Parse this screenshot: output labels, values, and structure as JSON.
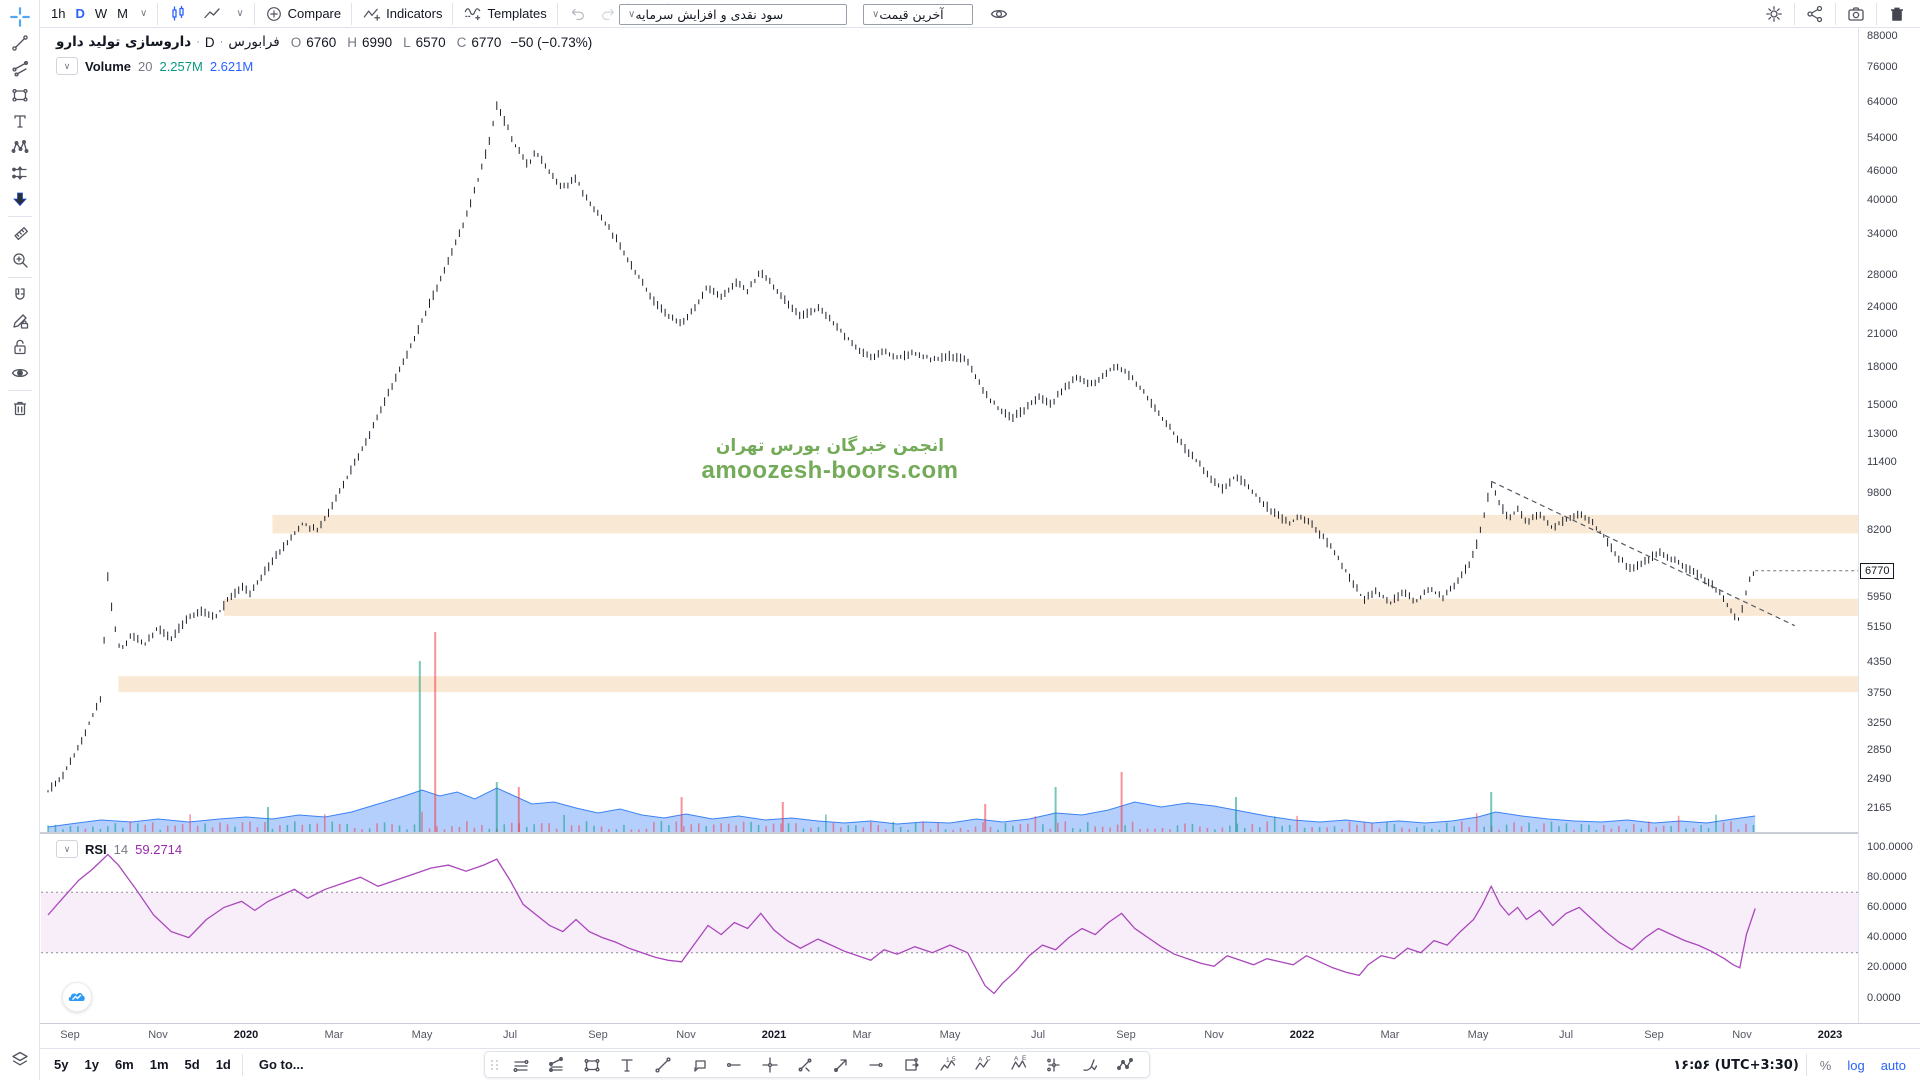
{
  "colors": {
    "accent_blue": "#2962ff",
    "icon_gray": "#50535e",
    "teal": "#089981",
    "purple_value": "#9c27b0",
    "rsi_line": "#ab47bc",
    "zone_fill": "#f9e8d4",
    "volume_blue": "#3b82f6",
    "watermark_green": "#74ab58",
    "candle": "#1c222c",
    "red": "#f23645",
    "border": "#e0e3eb"
  },
  "toolbar_top": {
    "intervals": [
      "1h",
      "D",
      "W",
      "M"
    ],
    "selected_interval": "D",
    "compare_label": "Compare",
    "indicators_label": "Indicators",
    "templates_label": "Templates",
    "dropdown_adjustments": "سود نقدی و افزایش سرمایه",
    "dropdown_last_price": "آخرین قیمت"
  },
  "legend": {
    "symbol": "داروسازی تولید دارو",
    "interval": "D",
    "exchange": "فرابورس",
    "sep": "·",
    "ohlc": {
      "o_label": "O",
      "o": "6760",
      "h_label": "H",
      "h": "6990",
      "l_label": "L",
      "l": "6570",
      "c_label": "C",
      "c": "6770",
      "change": "−50 (−0.73%)"
    },
    "volume_label": "Volume",
    "volume_length": "20",
    "volume_value1": "2.257M",
    "volume_value2": "2.621M"
  },
  "rsi_legend": {
    "label": "RSI",
    "length": "14",
    "value": "59.2714"
  },
  "watermark": {
    "line1": "انجمن خبرگان بورس تهران",
    "line2": "amoozesh-boors.com"
  },
  "toolbar_bottom": {
    "ranges": [
      "5y",
      "1y",
      "6m",
      "1m",
      "5d",
      "1d"
    ],
    "goto_label": "Go to...",
    "clock": "۱۶:۵۶ (UTC+3:30)",
    "percent_label": "%",
    "log_label": "log",
    "auto_label": "auto"
  },
  "chart_data": {
    "type": "candlestick",
    "title": "داروسازی تولید دارو · D · فرابورس",
    "scale": "log",
    "last_price": 6770,
    "price_axis_ticks": [
      88000,
      76000,
      64000,
      54000,
      46000,
      40000,
      34000,
      28000,
      24000,
      21000,
      18000,
      15000,
      13000,
      11400,
      9800,
      8200,
      5950,
      5150,
      4350,
      3750,
      3250,
      2850,
      2490,
      2165
    ],
    "rsi_axis_ticks": [
      [
        "100.0000",
        100
      ],
      [
        "80.0000",
        80
      ],
      [
        "60.0000",
        60
      ],
      [
        "40.0000",
        40
      ],
      [
        "20.0000",
        20
      ],
      [
        "0.0000",
        0
      ]
    ],
    "time_axis_labels": [
      [
        "Sep",
        0
      ],
      [
        "Nov",
        2
      ],
      [
        "2020",
        4
      ],
      [
        "Mar",
        6
      ],
      [
        "May",
        8
      ],
      [
        "Jul",
        10
      ],
      [
        "Sep",
        12
      ],
      [
        "Nov",
        14
      ],
      [
        "2021",
        16
      ],
      [
        "Mar",
        18
      ],
      [
        "May",
        20
      ],
      [
        "Jul",
        22
      ],
      [
        "Sep",
        24
      ],
      [
        "Nov",
        26
      ],
      [
        "2022",
        28
      ],
      [
        "Mar",
        30
      ],
      [
        "May",
        32
      ],
      [
        "Jul",
        34
      ],
      [
        "Sep",
        36
      ],
      [
        "Nov",
        38
      ],
      [
        "2023",
        40
      ]
    ],
    "price_series": [
      [
        -0.5,
        2350
      ],
      [
        -0.2,
        2500
      ],
      [
        0.1,
        2800
      ],
      [
        0.4,
        3200
      ],
      [
        0.7,
        3700
      ],
      [
        0.86,
        6600
      ],
      [
        1.0,
        5200
      ],
      [
        1.15,
        4600
      ],
      [
        1.4,
        5000
      ],
      [
        1.7,
        4750
      ],
      [
        2.0,
        5150
      ],
      [
        2.3,
        4900
      ],
      [
        2.6,
        5300
      ],
      [
        3.0,
        5600
      ],
      [
        3.3,
        5400
      ],
      [
        3.6,
        5900
      ],
      [
        3.9,
        6300
      ],
      [
        4.1,
        6100
      ],
      [
        4.4,
        6700
      ],
      [
        4.7,
        7300
      ],
      [
        5.0,
        7900
      ],
      [
        5.3,
        8500
      ],
      [
        5.6,
        8200
      ],
      [
        5.9,
        9000
      ],
      [
        6.2,
        10200
      ],
      [
        6.5,
        11500
      ],
      [
        6.8,
        13000
      ],
      [
        7.1,
        15000
      ],
      [
        7.4,
        17000
      ],
      [
        7.7,
        19500
      ],
      [
        8.0,
        22500
      ],
      [
        8.3,
        26000
      ],
      [
        8.6,
        30000
      ],
      [
        8.9,
        35000
      ],
      [
        9.2,
        42000
      ],
      [
        9.5,
        52000
      ],
      [
        9.7,
        63000
      ],
      [
        9.9,
        58000
      ],
      [
        10.1,
        52500
      ],
      [
        10.4,
        47500
      ],
      [
        10.6,
        50500
      ],
      [
        10.9,
        46000
      ],
      [
        11.2,
        42500
      ],
      [
        11.5,
        44500
      ],
      [
        11.8,
        39500
      ],
      [
        12.1,
        36500
      ],
      [
        12.4,
        33500
      ],
      [
        12.7,
        30000
      ],
      [
        13.0,
        27000
      ],
      [
        13.3,
        24500
      ],
      [
        13.6,
        23000
      ],
      [
        13.9,
        22200
      ],
      [
        14.2,
        24000
      ],
      [
        14.5,
        26500
      ],
      [
        14.8,
        25000
      ],
      [
        15.1,
        27000
      ],
      [
        15.4,
        26000
      ],
      [
        15.7,
        28500
      ],
      [
        16.0,
        26500
      ],
      [
        16.3,
        24500
      ],
      [
        16.6,
        23000
      ],
      [
        17.0,
        23800
      ],
      [
        17.3,
        22500
      ],
      [
        17.6,
        21000
      ],
      [
        17.9,
        19800
      ],
      [
        18.2,
        18800
      ],
      [
        18.5,
        19400
      ],
      [
        18.8,
        18900
      ],
      [
        19.2,
        19200
      ],
      [
        19.6,
        18700
      ],
      [
        20.0,
        19000
      ],
      [
        20.4,
        18600
      ],
      [
        20.8,
        15800
      ],
      [
        21.1,
        14800
      ],
      [
        21.4,
        14100
      ],
      [
        21.7,
        14700
      ],
      [
        22.0,
        15600
      ],
      [
        22.3,
        15100
      ],
      [
        22.6,
        16300
      ],
      [
        22.9,
        17100
      ],
      [
        23.2,
        16500
      ],
      [
        23.5,
        17400
      ],
      [
        23.8,
        18200
      ],
      [
        24.1,
        17200
      ],
      [
        24.4,
        16000
      ],
      [
        24.7,
        14600
      ],
      [
        25.0,
        13400
      ],
      [
        25.3,
        12300
      ],
      [
        25.6,
        11500
      ],
      [
        25.9,
        10600
      ],
      [
        26.2,
        10000
      ],
      [
        26.5,
        10700
      ],
      [
        26.8,
        10100
      ],
      [
        27.1,
        9400
      ],
      [
        27.4,
        8900
      ],
      [
        27.7,
        8500
      ],
      [
        28.0,
        8800
      ],
      [
        28.3,
        8300
      ],
      [
        28.6,
        7700
      ],
      [
        28.9,
        7000
      ],
      [
        29.2,
        6300
      ],
      [
        29.4,
        5900
      ],
      [
        29.7,
        6150
      ],
      [
        30.0,
        5800
      ],
      [
        30.3,
        6100
      ],
      [
        30.6,
        5850
      ],
      [
        30.9,
        6200
      ],
      [
        31.2,
        5950
      ],
      [
        31.5,
        6400
      ],
      [
        31.8,
        7000
      ],
      [
        32.0,
        7800
      ],
      [
        32.15,
        9000
      ],
      [
        32.3,
        10300
      ],
      [
        32.5,
        9300
      ],
      [
        32.7,
        8700
      ],
      [
        32.9,
        9100
      ],
      [
        33.1,
        8600
      ],
      [
        33.4,
        8900
      ],
      [
        33.7,
        8300
      ],
      [
        34.0,
        8700
      ],
      [
        34.3,
        8950
      ],
      [
        34.6,
        8500
      ],
      [
        34.9,
        7900
      ],
      [
        35.2,
        7200
      ],
      [
        35.5,
        6800
      ],
      [
        35.8,
        7100
      ],
      [
        36.1,
        7400
      ],
      [
        36.4,
        7150
      ],
      [
        36.7,
        6900
      ],
      [
        37.0,
        6650
      ],
      [
        37.3,
        6350
      ],
      [
        37.6,
        5900
      ],
      [
        37.8,
        5450
      ],
      [
        37.95,
        5350
      ],
      [
        38.05,
        5900
      ],
      [
        38.15,
        6400
      ],
      [
        38.3,
        6770
      ]
    ],
    "rsi_series": [
      [
        -0.5,
        55
      ],
      [
        -0.2,
        65
      ],
      [
        0.2,
        78
      ],
      [
        0.5,
        85
      ],
      [
        0.86,
        95
      ],
      [
        1.1,
        88
      ],
      [
        1.5,
        72
      ],
      [
        1.9,
        55
      ],
      [
        2.3,
        44
      ],
      [
        2.7,
        40
      ],
      [
        3.1,
        52
      ],
      [
        3.5,
        60
      ],
      [
        3.9,
        64
      ],
      [
        4.2,
        58
      ],
      [
        4.5,
        64
      ],
      [
        4.8,
        68
      ],
      [
        5.1,
        72
      ],
      [
        5.4,
        66
      ],
      [
        5.8,
        72
      ],
      [
        6.2,
        76
      ],
      [
        6.6,
        80
      ],
      [
        7.0,
        74
      ],
      [
        7.4,
        78
      ],
      [
        7.8,
        82
      ],
      [
        8.2,
        86
      ],
      [
        8.6,
        88
      ],
      [
        9.0,
        84
      ],
      [
        9.4,
        88
      ],
      [
        9.7,
        92
      ],
      [
        10.0,
        78
      ],
      [
        10.3,
        62
      ],
      [
        10.6,
        55
      ],
      [
        10.9,
        48
      ],
      [
        11.2,
        44
      ],
      [
        11.5,
        52
      ],
      [
        11.8,
        44
      ],
      [
        12.1,
        40
      ],
      [
        12.4,
        37
      ],
      [
        12.7,
        33
      ],
      [
        13.0,
        30
      ],
      [
        13.3,
        27
      ],
      [
        13.6,
        25
      ],
      [
        13.9,
        24
      ],
      [
        14.2,
        36
      ],
      [
        14.5,
        48
      ],
      [
        14.8,
        42
      ],
      [
        15.1,
        50
      ],
      [
        15.4,
        46
      ],
      [
        15.7,
        56
      ],
      [
        16.0,
        45
      ],
      [
        16.3,
        38
      ],
      [
        16.6,
        33
      ],
      [
        17.0,
        39
      ],
      [
        17.3,
        35
      ],
      [
        17.6,
        31
      ],
      [
        17.9,
        28
      ],
      [
        18.2,
        25
      ],
      [
        18.5,
        32
      ],
      [
        18.8,
        29
      ],
      [
        19.2,
        34
      ],
      [
        19.6,
        30
      ],
      [
        20.0,
        35
      ],
      [
        20.4,
        30
      ],
      [
        20.8,
        8
      ],
      [
        21.0,
        3
      ],
      [
        21.2,
        10
      ],
      [
        21.5,
        18
      ],
      [
        21.8,
        28
      ],
      [
        22.1,
        35
      ],
      [
        22.4,
        32
      ],
      [
        22.7,
        40
      ],
      [
        23.0,
        46
      ],
      [
        23.3,
        42
      ],
      [
        23.6,
        50
      ],
      [
        23.9,
        56
      ],
      [
        24.2,
        46
      ],
      [
        24.5,
        40
      ],
      [
        24.8,
        34
      ],
      [
        25.1,
        29
      ],
      [
        25.4,
        26
      ],
      [
        25.7,
        23
      ],
      [
        26.0,
        21
      ],
      [
        26.3,
        28
      ],
      [
        26.6,
        25
      ],
      [
        26.9,
        22
      ],
      [
        27.2,
        26
      ],
      [
        27.5,
        24
      ],
      [
        27.8,
        22
      ],
      [
        28.1,
        28
      ],
      [
        28.4,
        24
      ],
      [
        28.7,
        20
      ],
      [
        29.0,
        17
      ],
      [
        29.3,
        15
      ],
      [
        29.5,
        22
      ],
      [
        29.8,
        28
      ],
      [
        30.1,
        26
      ],
      [
        30.4,
        33
      ],
      [
        30.7,
        30
      ],
      [
        31.0,
        38
      ],
      [
        31.3,
        35
      ],
      [
        31.6,
        44
      ],
      [
        31.9,
        52
      ],
      [
        32.1,
        62
      ],
      [
        32.3,
        74
      ],
      [
        32.5,
        62
      ],
      [
        32.7,
        55
      ],
      [
        32.9,
        60
      ],
      [
        33.1,
        52
      ],
      [
        33.4,
        58
      ],
      [
        33.7,
        48
      ],
      [
        34.0,
        56
      ],
      [
        34.3,
        60
      ],
      [
        34.6,
        52
      ],
      [
        34.9,
        44
      ],
      [
        35.2,
        37
      ],
      [
        35.5,
        32
      ],
      [
        35.8,
        40
      ],
      [
        36.1,
        46
      ],
      [
        36.4,
        42
      ],
      [
        36.7,
        38
      ],
      [
        37.0,
        35
      ],
      [
        37.3,
        31
      ],
      [
        37.6,
        26
      ],
      [
        37.8,
        22
      ],
      [
        37.95,
        20
      ],
      [
        38.1,
        42
      ],
      [
        38.3,
        59.27
      ]
    ],
    "rsi_band": [
      30,
      70
    ],
    "volume_area": [
      [
        -0.5,
        5
      ],
      [
        0,
        8
      ],
      [
        0.7,
        12
      ],
      [
        1.4,
        10
      ],
      [
        2,
        13
      ],
      [
        2.7,
        10
      ],
      [
        3.4,
        13
      ],
      [
        4,
        15
      ],
      [
        4.6,
        13
      ],
      [
        5.2,
        17
      ],
      [
        5.8,
        15
      ],
      [
        6.4,
        20
      ],
      [
        7,
        28
      ],
      [
        7.6,
        36
      ],
      [
        8,
        42
      ],
      [
        8.4,
        36
      ],
      [
        8.8,
        40
      ],
      [
        9.2,
        33
      ],
      [
        9.7,
        44
      ],
      [
        10.1,
        36
      ],
      [
        10.5,
        28
      ],
      [
        11,
        30
      ],
      [
        11.5,
        24
      ],
      [
        12,
        19
      ],
      [
        12.5,
        23
      ],
      [
        13,
        17
      ],
      [
        13.5,
        14
      ],
      [
        14,
        18
      ],
      [
        14.6,
        13
      ],
      [
        15.2,
        16
      ],
      [
        15.8,
        12
      ],
      [
        16.4,
        14
      ],
      [
        17,
        11
      ],
      [
        17.6,
        9
      ],
      [
        18.2,
        11
      ],
      [
        18.8,
        8
      ],
      [
        19.4,
        10
      ],
      [
        20,
        9
      ],
      [
        20.6,
        13
      ],
      [
        21.2,
        10
      ],
      [
        21.8,
        13
      ],
      [
        22.4,
        19
      ],
      [
        23,
        17
      ],
      [
        23.6,
        22
      ],
      [
        24.2,
        30
      ],
      [
        24.8,
        25
      ],
      [
        25.4,
        29
      ],
      [
        26,
        26
      ],
      [
        26.6,
        21
      ],
      [
        27.2,
        16
      ],
      [
        27.8,
        12
      ],
      [
        28.4,
        10
      ],
      [
        29,
        12
      ],
      [
        29.6,
        9
      ],
      [
        30.2,
        11
      ],
      [
        30.8,
        9
      ],
      [
        31.4,
        11
      ],
      [
        32,
        15
      ],
      [
        32.4,
        20
      ],
      [
        33,
        16
      ],
      [
        33.6,
        13
      ],
      [
        34.2,
        11
      ],
      [
        34.8,
        10
      ],
      [
        35.4,
        12
      ],
      [
        36,
        9
      ],
      [
        36.6,
        11
      ],
      [
        37.2,
        9
      ],
      [
        37.8,
        13
      ],
      [
        38.3,
        16
      ]
    ],
    "volume_spikes": [
      [
        4.5,
        25,
        "g"
      ],
      [
        7.95,
        171,
        "g"
      ],
      [
        8.3,
        200,
        "r"
      ],
      [
        9.7,
        50,
        "g"
      ],
      [
        10.2,
        45,
        "r"
      ],
      [
        13.9,
        35,
        "r"
      ],
      [
        16.2,
        30,
        "r"
      ],
      [
        20.8,
        28,
        "r"
      ],
      [
        22.4,
        45,
        "g"
      ],
      [
        23.9,
        60,
        "r"
      ],
      [
        26.5,
        35,
        "g"
      ],
      [
        32.3,
        40,
        "g"
      ]
    ],
    "zones": [
      {
        "price_from": 8100,
        "price_to": 8850,
        "start_month": 4.6
      },
      {
        "price_from": 5450,
        "price_to": 5920,
        "start_month": 3.5
      },
      {
        "price_from": 3780,
        "price_to": 4080,
        "start_month": 1.1
      }
    ],
    "trendline": {
      "from": [
        32.3,
        10400
      ],
      "to": [
        39.2,
        5200
      ],
      "style": "dashed"
    }
  }
}
